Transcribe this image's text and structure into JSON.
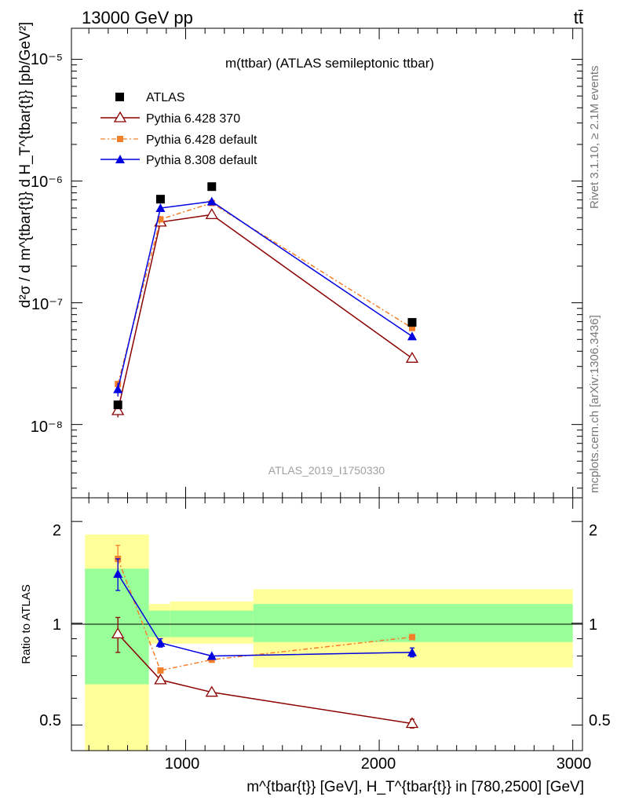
{
  "header": {
    "energy_label": "13000 GeV pp",
    "process_label": "tt̄"
  },
  "side_labels": {
    "rivet": "Rivet 3.1.10, ≥ 2.1M events",
    "mcplots": "mcplots.cern.ch [arXiv:1306.3436]"
  },
  "analysis_id": "ATLAS_2019_I1750330",
  "colors": {
    "atlas": "#000000",
    "pythia6_370": "#8b0000",
    "pythia6_default": "#f47f2a",
    "pythia8_default": "#0000e0",
    "band_inner": "#99ff99",
    "band_outer": "#ffff99"
  },
  "chart_data": [
    {
      "type": "scatter",
      "panel": "main",
      "title": "m(ttbar) (ATLAS semileptonic ttbar)",
      "ylabel": "d²σ / d m^{tbar{t}} d H_T^{tbar{t}} [pb/GeV²]",
      "yscale": "log",
      "ylim": [
        2.5e-09,
        1.8e-05
      ],
      "xlim": [
        410,
        3050
      ],
      "ytick_labels": [
        "10⁻⁸",
        "10⁻⁷",
        "10⁻⁶",
        "10⁻⁵"
      ],
      "legend": [
        "ATLAS",
        "Pythia 6.428 370",
        "Pythia 6.428 default",
        "Pythia 8.308 default"
      ],
      "legend_position": "top-left",
      "x": [
        650,
        870,
        1135,
        2170
      ],
      "series": [
        {
          "name": "ATLAS",
          "values": [
            1.45e-08,
            7.1e-07,
            9e-07,
            6.9e-08
          ],
          "marker": "square"
        },
        {
          "name": "Pythia 6.428 370",
          "values": [
            1.3e-08,
            4.6e-07,
            5.3e-07,
            3.5e-08
          ],
          "marker": "open-triangle",
          "err": [
            0.12,
            0,
            0,
            0
          ]
        },
        {
          "name": "Pythia 6.428 default",
          "values": [
            2.15e-08,
            4.85e-07,
            6.6e-07,
            6.2e-08
          ],
          "marker": "small-square"
        },
        {
          "name": "Pythia 8.308 default",
          "values": [
            1.95e-08,
            6e-07,
            6.8e-07,
            5.3e-08
          ],
          "marker": "triangle",
          "err": [
            0.13,
            0,
            0,
            0
          ]
        }
      ]
    },
    {
      "type": "scatter",
      "panel": "ratio",
      "ylabel": "Ratio to ATLAS",
      "xlabel": "m^{tbar{t}} [GeV], H_T^{tbar{t}} in [780,2500] [GeV]",
      "yscale": "log",
      "ylim": [
        0.42,
        2.35
      ],
      "xlim": [
        410,
        3050
      ],
      "yticks": [
        0.5,
        1,
        2
      ],
      "ytick_labels": [
        "0.5",
        "1",
        "2"
      ],
      "xticks": [
        1000,
        2000,
        3000
      ],
      "xtick_labels": [
        "1000",
        "2000",
        "3000"
      ],
      "bands": [
        {
          "x0": 480,
          "x1": 810,
          "inner": [
            0.66,
            1.45
          ],
          "outer": [
            0.42,
            1.83
          ]
        },
        {
          "x0": 810,
          "x1": 920,
          "inner": [
            0.91,
            1.09
          ],
          "outer": [
            0.87,
            1.14
          ]
        },
        {
          "x0": 920,
          "x1": 1350,
          "inner": [
            0.91,
            1.09
          ],
          "outer": [
            0.87,
            1.16
          ]
        },
        {
          "x0": 1350,
          "x1": 3000,
          "inner": [
            0.88,
            1.14
          ],
          "outer": [
            0.74,
            1.26
          ]
        }
      ],
      "x": [
        650,
        870,
        1135,
        2170
      ],
      "series": [
        {
          "name": "Pythia 6.428 370",
          "values": [
            0.93,
            0.68,
            0.625,
            0.505
          ],
          "err": [
            0.11,
            0,
            0,
            0.015
          ]
        },
        {
          "name": "Pythia 6.428 default",
          "values": [
            1.55,
            0.725,
            0.78,
            0.91
          ],
          "err": [
            0.15,
            0,
            0,
            0.015
          ]
        },
        {
          "name": "Pythia 8.308 default",
          "values": [
            1.4,
            0.875,
            0.8,
            0.82
          ],
          "err": [
            0.15,
            0.025,
            0,
            0.025
          ]
        }
      ]
    }
  ]
}
